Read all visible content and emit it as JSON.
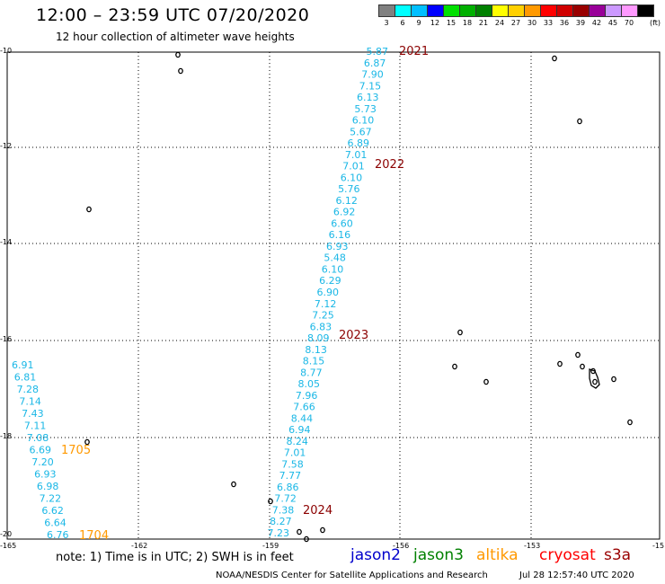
{
  "header": {
    "title": "12:00 – 23:59 UTC 07/20/2020",
    "subtitle": "12 hour collection of altimeter wave heights"
  },
  "color_legend": {
    "unit": "(ft)",
    "bins": [
      {
        "label": "3",
        "color": "#808080"
      },
      {
        "label": "6",
        "color": "#00ffff"
      },
      {
        "label": "9",
        "color": "#00bfff"
      },
      {
        "label": "12",
        "color": "#0000ff"
      },
      {
        "label": "15",
        "color": "#00e000"
      },
      {
        "label": "18",
        "color": "#00b000"
      },
      {
        "label": "21",
        "color": "#008000"
      },
      {
        "label": "24",
        "color": "#ffff00"
      },
      {
        "label": "27",
        "color": "#ffd000"
      },
      {
        "label": "30",
        "color": "#ff9900"
      },
      {
        "label": "33",
        "color": "#ff0000"
      },
      {
        "label": "36",
        "color": "#d00000"
      },
      {
        "label": "39",
        "color": "#990000"
      },
      {
        "label": "42",
        "color": "#990099"
      },
      {
        "label": "45",
        "color": "#cc99ff"
      },
      {
        "label": "70",
        "color": "#ff99ff"
      },
      {
        "label": "",
        "color": "#000000"
      }
    ]
  },
  "axes": {
    "lat_labels": [
      "-10",
      "-12",
      "-14",
      "-16",
      "-18",
      "-20"
    ],
    "lon_labels": [
      "-165",
      "-162",
      "-159",
      "-156",
      "-153",
      "-15"
    ]
  },
  "tracks": [
    {
      "id": "2021",
      "color": "#1ab7e6",
      "label_color": "#8b0000",
      "label_pos": [
        445,
        57
      ],
      "values": [
        "5.87",
        "6.87",
        "7.90",
        "7.15",
        "6.13",
        "5.73",
        "6.10",
        "5.67",
        "6.89",
        "7.01",
        "7.01",
        "6.10",
        "5.76",
        "6.12",
        "6.92",
        "6.60",
        "6.16",
        "6.93",
        "5.48",
        "6.10",
        "6.29",
        "6.90",
        "7.12",
        "7.25",
        "6.83",
        "8.09",
        "8.13",
        "8.15",
        "8.77",
        "8.05",
        "7.96",
        "7.66",
        "8.44",
        "6.94",
        "8.24",
        "7.01",
        "7.58",
        "7.77",
        "6.86",
        "7.72",
        "7.38",
        "8.27",
        "7.23"
      ]
    },
    {
      "id": "1705",
      "color": "#1ab7e6",
      "label_color": "#ff9900",
      "values": [
        "6.91",
        "6.81",
        "7.28",
        "7.14",
        "7.43",
        "7.11",
        "7.08",
        "6.69",
        "7.20",
        "6.93",
        "6.98",
        "7.22",
        "6.62",
        "6.64",
        "6.76"
      ]
    }
  ],
  "track_labels": [
    {
      "text": "2021",
      "color": "#8b0000"
    },
    {
      "text": "2022",
      "color": "#8b0000"
    },
    {
      "text": "2023",
      "color": "#8b0000"
    },
    {
      "text": "2024",
      "color": "#8b0000"
    },
    {
      "text": "1705",
      "color": "#ff9900"
    },
    {
      "text": "1704",
      "color": "#ff9900"
    }
  ],
  "footer": {
    "note": "note:  1) Time is in UTC;  2) SWH is in feet",
    "satellites": [
      {
        "name": "jason2",
        "color": "#0000cc"
      },
      {
        "name": "jason3",
        "color": "#008000"
      },
      {
        "name": "altika",
        "color": "#ff9900"
      },
      {
        "name": "cryosat",
        "color": "#ff0000"
      },
      {
        "name": "s3a",
        "color": "#990000"
      }
    ],
    "credit": "NOAA/NESDIS Center for Satellite Applications and Research",
    "timestamp": "Jul 28 12:57:40 UTC 2020"
  }
}
